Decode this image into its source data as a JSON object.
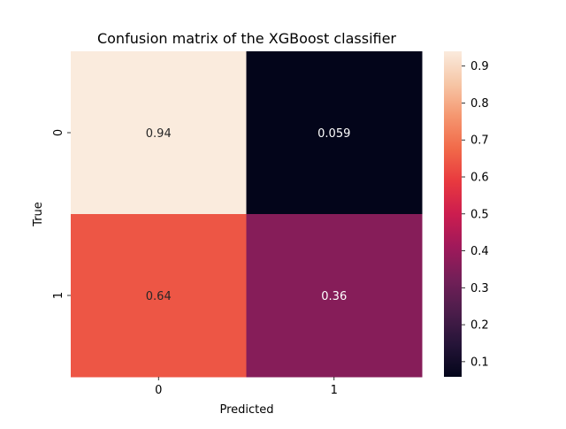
{
  "chart_data": {
    "type": "heatmap",
    "title": "Confusion matrix of the XGBoost classifier",
    "xlabel": "Predicted",
    "ylabel": "True",
    "x_categories": [
      "0",
      "1"
    ],
    "y_categories": [
      "0",
      "1"
    ],
    "values": [
      [
        0.94,
        0.059
      ],
      [
        0.64,
        0.36
      ]
    ],
    "cell_labels": [
      [
        "0.94",
        "0.059"
      ],
      [
        "0.64",
        "0.36"
      ]
    ],
    "colormap": "rocket",
    "colorbar": {
      "range": [
        0.059,
        0.94
      ],
      "ticks": [
        0.1,
        0.2,
        0.3,
        0.4,
        0.5,
        0.6,
        0.7,
        0.8,
        0.9
      ],
      "tick_labels": [
        "0.1",
        "0.2",
        "0.3",
        "0.4",
        "0.5",
        "0.6",
        "0.7",
        "0.8",
        "0.9"
      ],
      "placement": "right"
    },
    "grid": false
  }
}
